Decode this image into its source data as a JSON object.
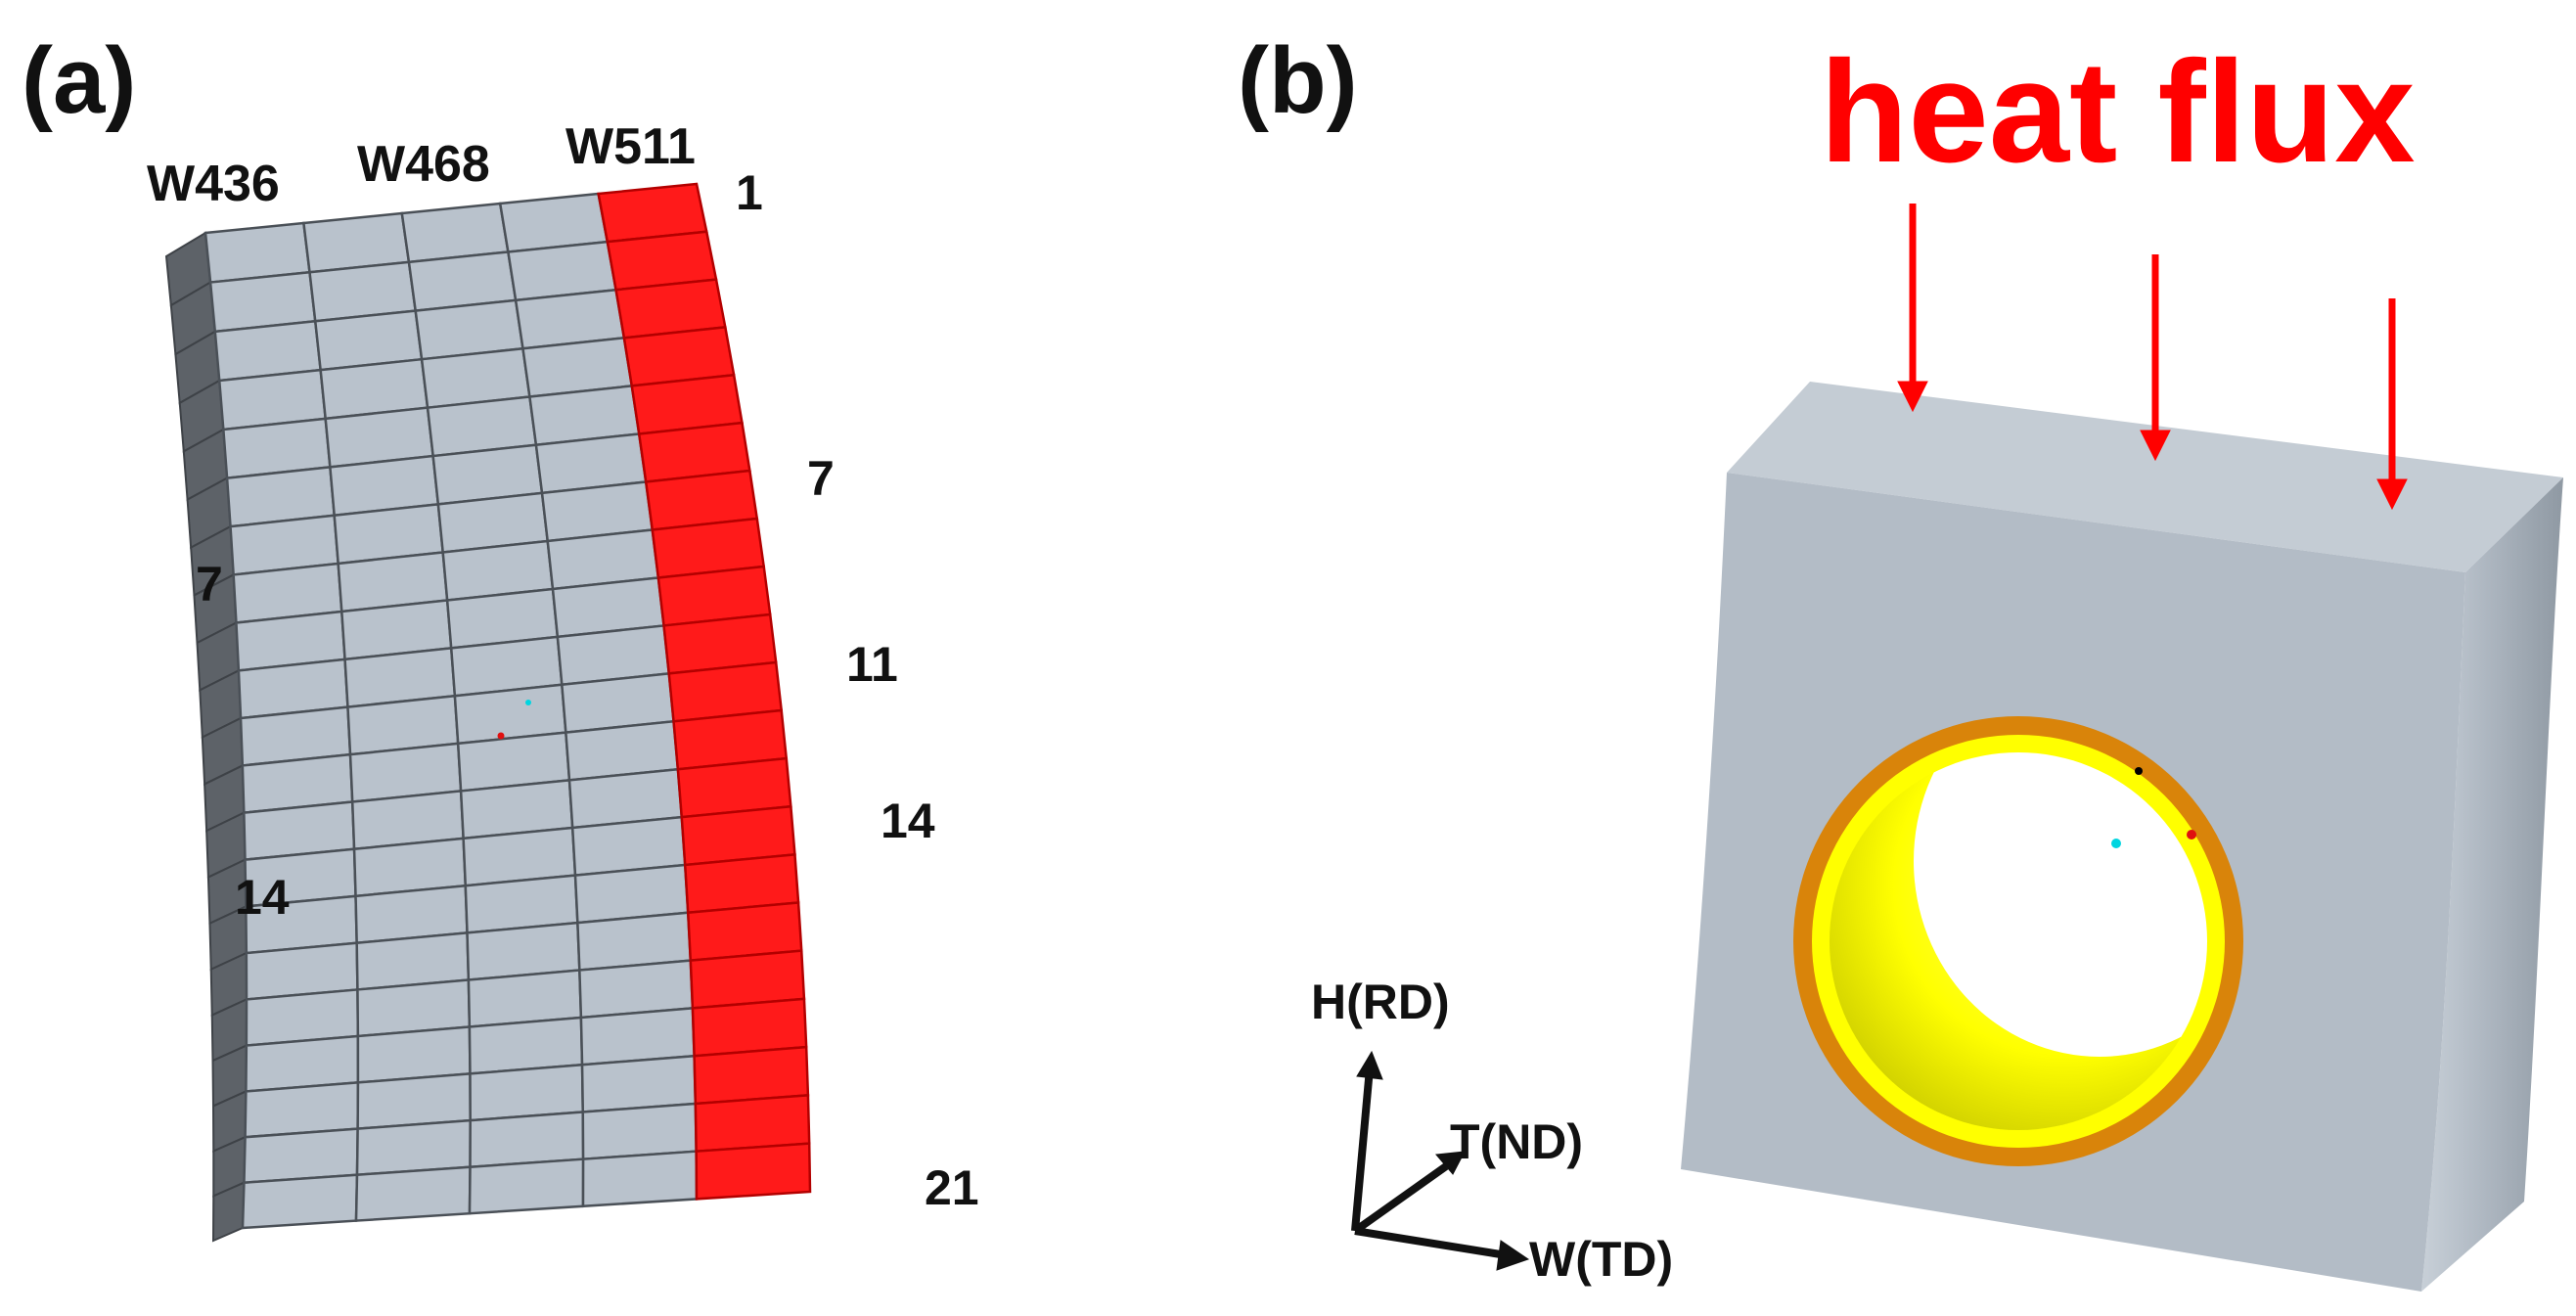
{
  "panel_a": {
    "label": "(a)",
    "columns": [
      "W436",
      "W468",
      "W511"
    ],
    "right_rows": [
      "1",
      "7",
      "11",
      "14",
      "21"
    ],
    "left_rows": [
      "7",
      "14"
    ]
  },
  "panel_b": {
    "label": "(b)",
    "heat_flux_label": "heat flux",
    "axes": {
      "h": "H(RD)",
      "t": "T(ND)",
      "w": "W(TD)"
    }
  },
  "colors": {
    "block_face": "#b9c2cc",
    "block_side": "#5d6268",
    "heated": "#ff1a1a",
    "heat_flux": "#ff0000",
    "ring_outer": "#d9840a",
    "ring_inner": "#ffff00"
  }
}
